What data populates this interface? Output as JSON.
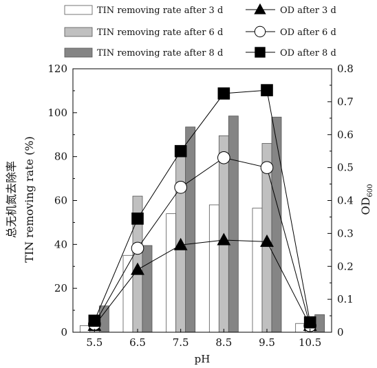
{
  "chart_data": {
    "type": "bar",
    "xlabel": "pH",
    "ylabel_cn": "总无机氮去除率",
    "ylabel": "TIN removing rate (%)",
    "y2label_main": "OD",
    "y2label_sub": "600",
    "categories": [
      "5.5",
      "6.5",
      "7.5",
      "8.5",
      "9.5",
      "10.5"
    ],
    "ylim": [
      0,
      120
    ],
    "yticks": [
      0,
      20,
      40,
      60,
      80,
      100,
      120
    ],
    "y2lim": [
      0,
      0.8
    ],
    "y2ticks": [
      "0",
      "0.1",
      "0.2",
      "0.3",
      "0.4",
      "0.5",
      "0.6",
      "0.7",
      "0.8"
    ],
    "bar_series": [
      {
        "name": "TIN removing rate after 3 d",
        "color": "#ffffff",
        "values": [
          3,
          35,
          54,
          58,
          56.5,
          4
        ]
      },
      {
        "name": "TIN removing rate after 6 d",
        "color": "#c0c0c0",
        "values": [
          3,
          62,
          84,
          89.5,
          86,
          4
        ]
      },
      {
        "name": "TIN removing rate after 8 d",
        "color": "#858585",
        "values": [
          12,
          39.5,
          93.5,
          98.5,
          98,
          8
        ]
      }
    ],
    "line_series": [
      {
        "name": "OD after 3 d",
        "marker": "triangle",
        "values": [
          0.02,
          0.19,
          0.265,
          0.28,
          0.275,
          0.02
        ]
      },
      {
        "name": "OD after 6 d",
        "marker": "circle",
        "values": [
          0.025,
          0.255,
          0.44,
          0.53,
          0.5,
          0.02
        ]
      },
      {
        "name": "OD after 8 d",
        "marker": "square",
        "values": [
          0.035,
          0.345,
          0.55,
          0.725,
          0.735,
          0.03
        ]
      }
    ],
    "legend_position": "top",
    "grid": false
  }
}
